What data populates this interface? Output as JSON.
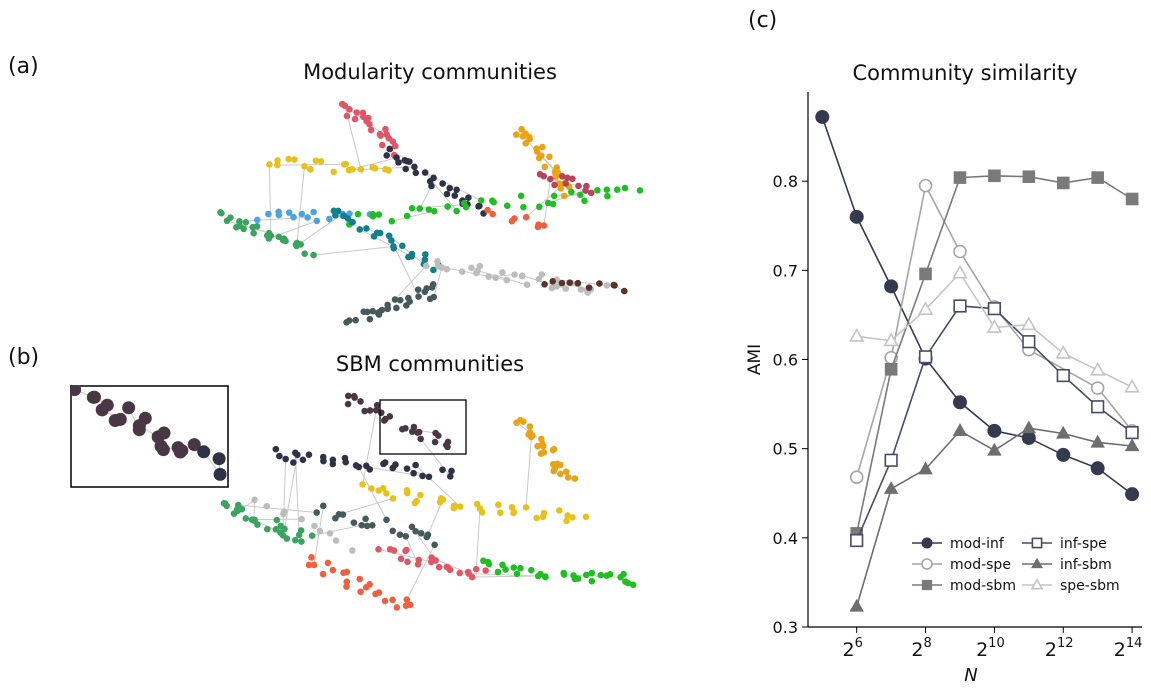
{
  "panels": {
    "a": {
      "label": "(a)",
      "title": "Modularity communities"
    },
    "b": {
      "label": "(b)",
      "title": "SBM communities"
    },
    "c": {
      "label": "(c)"
    }
  },
  "community_colors": [
    "#e05667",
    "#e8a317",
    "#e6c21a",
    "#2f3246",
    "#b8455a",
    "#4ea3dd",
    "#3aa35f",
    "#1fbf24",
    "#11808a",
    "#465a5c",
    "#bdbdbd",
    "#5a3328",
    "#f0603c",
    "#4a3745"
  ],
  "chart_data": {
    "type": "line",
    "title": "Community similarity",
    "xlabel": "N",
    "ylabel": "AMI",
    "xscale": "log2",
    "xlim": [
      24,
      20000
    ],
    "ylim": [
      0.3,
      0.9
    ],
    "xticks": [
      {
        "value": 64,
        "base": "2",
        "exp": "6"
      },
      {
        "value": 256,
        "base": "2",
        "exp": "8"
      },
      {
        "value": 1024,
        "base": "2",
        "exp": "10"
      },
      {
        "value": 4096,
        "base": "2",
        "exp": "12"
      },
      {
        "value": 16384,
        "base": "2",
        "exp": "14"
      }
    ],
    "yticks": [
      "0.3",
      "0.4",
      "0.5",
      "0.6",
      "0.7",
      "0.8"
    ],
    "legend_position": "lower-right",
    "x": [
      32,
      64,
      128,
      256,
      512,
      1024,
      2048,
      4096,
      8192,
      16384
    ],
    "series": [
      {
        "name": "mod-inf",
        "color": "#353a4f",
        "marker": "circle",
        "filled": true,
        "values": [
          0.872,
          0.76,
          0.682,
          0.601,
          0.552,
          0.52,
          0.512,
          0.493,
          0.478,
          0.449
        ]
      },
      {
        "name": "mod-spe",
        "color": "#a6a6a6",
        "marker": "circle",
        "filled": false,
        "values": [
          null,
          0.468,
          0.602,
          0.795,
          0.721,
          0.659,
          0.611,
          null,
          0.568,
          0.52
        ]
      },
      {
        "name": "mod-sbm",
        "color": "#7a7a7a",
        "marker": "square",
        "filled": true,
        "values": [
          null,
          0.405,
          0.589,
          0.696,
          0.804,
          0.806,
          0.805,
          0.798,
          0.804,
          0.78
        ]
      },
      {
        "name": "inf-spe",
        "color": "#464c64",
        "marker": "square",
        "filled": false,
        "values": [
          null,
          0.397,
          0.487,
          0.603,
          0.66,
          0.657,
          0.62,
          0.582,
          0.547,
          0.518
        ]
      },
      {
        "name": "inf-sbm",
        "color": "#6e6e6e",
        "marker": "triangle",
        "filled": true,
        "values": [
          null,
          0.323,
          0.455,
          0.477,
          0.52,
          0.498,
          0.523,
          0.517,
          0.507,
          0.503
        ]
      },
      {
        "name": "spe-sbm",
        "color": "#c4c4c4",
        "marker": "triangle",
        "filled": false,
        "values": [
          null,
          0.626,
          0.621,
          0.656,
          0.697,
          0.636,
          0.639,
          0.607,
          0.588,
          0.569
        ]
      }
    ]
  }
}
